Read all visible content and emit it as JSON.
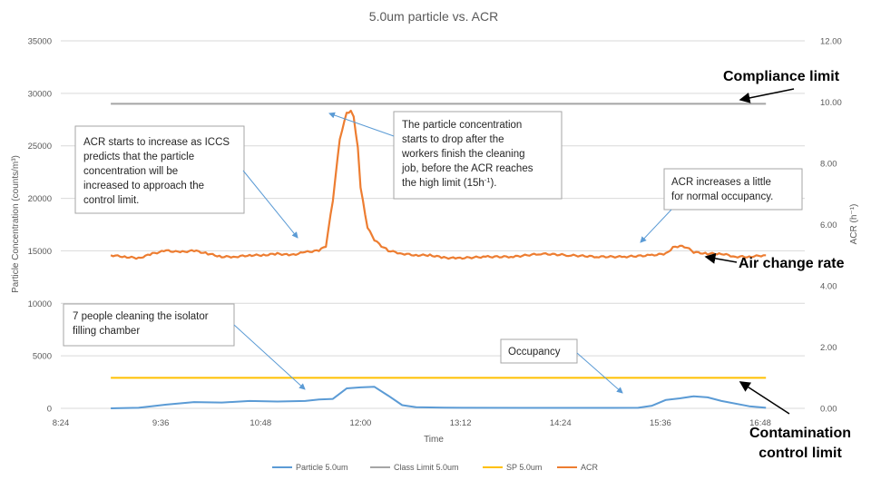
{
  "chart_data": {
    "type": "line",
    "title": "5.0um particle vs. ACR",
    "xlabel": "Time",
    "ylabel": "Particle Concentration (counts/m³)",
    "y2label": "ACR (h⁻¹)",
    "x_tick_labels": [
      "8:24",
      "9:36",
      "10:48",
      "12:00",
      "13:12",
      "14:24",
      "15:36",
      "16:48"
    ],
    "x_range_minutes": [
      504,
      1040
    ],
    "ylim": [
      0,
      35000
    ],
    "y_ticks": [
      0,
      5000,
      10000,
      15000,
      20000,
      25000,
      30000,
      35000
    ],
    "y2lim": [
      0,
      12
    ],
    "y2_ticks": [
      "0.00",
      "2.00",
      "4.00",
      "6.00",
      "8.00",
      "10.00",
      "12.00"
    ],
    "grid": "horizontal",
    "legend": "bottom",
    "series": [
      {
        "name": "Particle 5.0um",
        "axis": "left",
        "color": "#5b9bd5",
        "x": [
          "9:00",
          "9:20",
          "9:40",
          "10:00",
          "10:20",
          "10:40",
          "11:00",
          "11:20",
          "11:30",
          "11:40",
          "11:50",
          "12:00",
          "12:10",
          "12:20",
          "12:30",
          "12:40",
          "13:00",
          "14:00",
          "15:00",
          "15:20",
          "15:30",
          "15:40",
          "15:50",
          "16:00",
          "16:10",
          "16:20",
          "16:40",
          "16:52"
        ],
        "y": [
          0,
          50,
          350,
          600,
          550,
          700,
          650,
          700,
          850,
          900,
          1900,
          2000,
          2050,
          1200,
          300,
          100,
          60,
          40,
          40,
          50,
          250,
          800,
          950,
          1150,
          1050,
          700,
          200,
          50
        ]
      },
      {
        "name": "Class Limit 5.0um",
        "axis": "left",
        "color": "#a5a5a5",
        "x": [
          "9:00",
          "16:52"
        ],
        "y": [
          29000,
          29000
        ]
      },
      {
        "name": "SP 5.0um",
        "axis": "left",
        "color": "#ffc000",
        "x": [
          "9:00",
          "16:52"
        ],
        "y": [
          2900,
          2900
        ]
      },
      {
        "name": "ACR",
        "axis": "right",
        "color": "#ed7d31",
        "x": [
          "9:00",
          "9:10",
          "9:20",
          "9:30",
          "9:40",
          "9:50",
          "10:00",
          "10:10",
          "10:20",
          "10:30",
          "10:40",
          "10:50",
          "11:00",
          "11:10",
          "11:20",
          "11:30",
          "11:35",
          "11:40",
          "11:45",
          "11:50",
          "11:53",
          "11:55",
          "11:58",
          "12:00",
          "12:05",
          "12:10",
          "12:15",
          "12:20",
          "12:30",
          "12:40",
          "12:50",
          "13:00",
          "13:10",
          "13:30",
          "13:50",
          "14:10",
          "14:30",
          "14:50",
          "15:10",
          "15:30",
          "15:40",
          "15:45",
          "15:50",
          "15:55",
          "16:00",
          "16:10",
          "16:20",
          "16:30",
          "16:40",
          "16:52"
        ],
        "y": [
          5.0,
          4.95,
          4.9,
          5.05,
          5.15,
          5.1,
          5.15,
          5.05,
          4.95,
          4.95,
          5.0,
          5.0,
          5.05,
          5.0,
          5.1,
          5.15,
          5.3,
          6.8,
          8.8,
          9.65,
          9.7,
          9.5,
          8.5,
          7.2,
          5.9,
          5.5,
          5.3,
          5.15,
          5.05,
          5.0,
          5.0,
          4.92,
          4.9,
          4.95,
          4.95,
          5.05,
          5.0,
          4.95,
          4.95,
          5.0,
          5.05,
          5.25,
          5.3,
          5.25,
          5.1,
          5.05,
          5.05,
          4.95,
          4.95,
          5.0
        ]
      }
    ],
    "annotations": [
      {
        "name": "acr-increase-note",
        "lines": [
          "ACR starts to increase as ICCS",
          "predicts that the particle",
          "concentration will be",
          "increased to approach the",
          "control limit."
        ]
      },
      {
        "name": "particle-drop-note",
        "lines": [
          "The particle concentration",
          "starts to drop after the",
          "workers finish the cleaning",
          "job, before the ACR reaches"
        ],
        "last_line_prefix": "the high limit (15h",
        "last_line_sup": "-1",
        "last_line_suffix": ")."
      },
      {
        "name": "normal-occupancy-note",
        "lines": [
          "ACR increases a little",
          "for normal occupancy."
        ]
      },
      {
        "name": "cleaning-note",
        "lines": [
          "7 people cleaning the isolator",
          "filling chamber"
        ]
      },
      {
        "name": "occupancy-note",
        "lines": [
          "Occupancy"
        ]
      }
    ],
    "side_labels": {
      "compliance": "Compliance limit",
      "acr": "Air change rate",
      "contamination_line1": "Contamination",
      "contamination_line2": "control limit"
    }
  }
}
